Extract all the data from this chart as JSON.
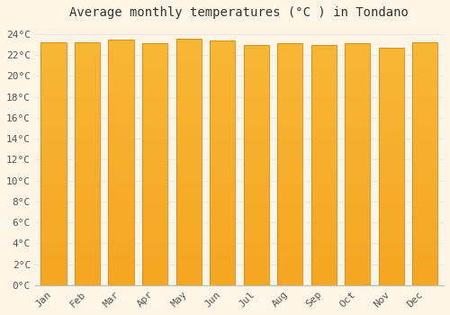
{
  "title": "Average monthly temperatures (°C ) in Tondano",
  "months": [
    "Jan",
    "Feb",
    "Mar",
    "Apr",
    "May",
    "Jun",
    "Jul",
    "Aug",
    "Sep",
    "Oct",
    "Nov",
    "Dec"
  ],
  "temperatures": [
    23.2,
    23.2,
    23.5,
    23.1,
    23.6,
    23.4,
    23.0,
    23.1,
    23.0,
    23.1,
    22.7,
    23.2
  ],
  "bar_color": "#F5A623",
  "bar_edge_color": "#D4881A",
  "background_color": "#FFF5E6",
  "plot_bg_color": "#FFF5E6",
  "grid_color": "#E8E8E8",
  "ylim": [
    0,
    25
  ],
  "yticks": [
    0,
    2,
    4,
    6,
    8,
    10,
    12,
    14,
    16,
    18,
    20,
    22,
    24
  ],
  "title_fontsize": 10,
  "tick_fontsize": 8,
  "bar_width": 0.75,
  "title_color": "#333333",
  "tick_color": "#555555"
}
